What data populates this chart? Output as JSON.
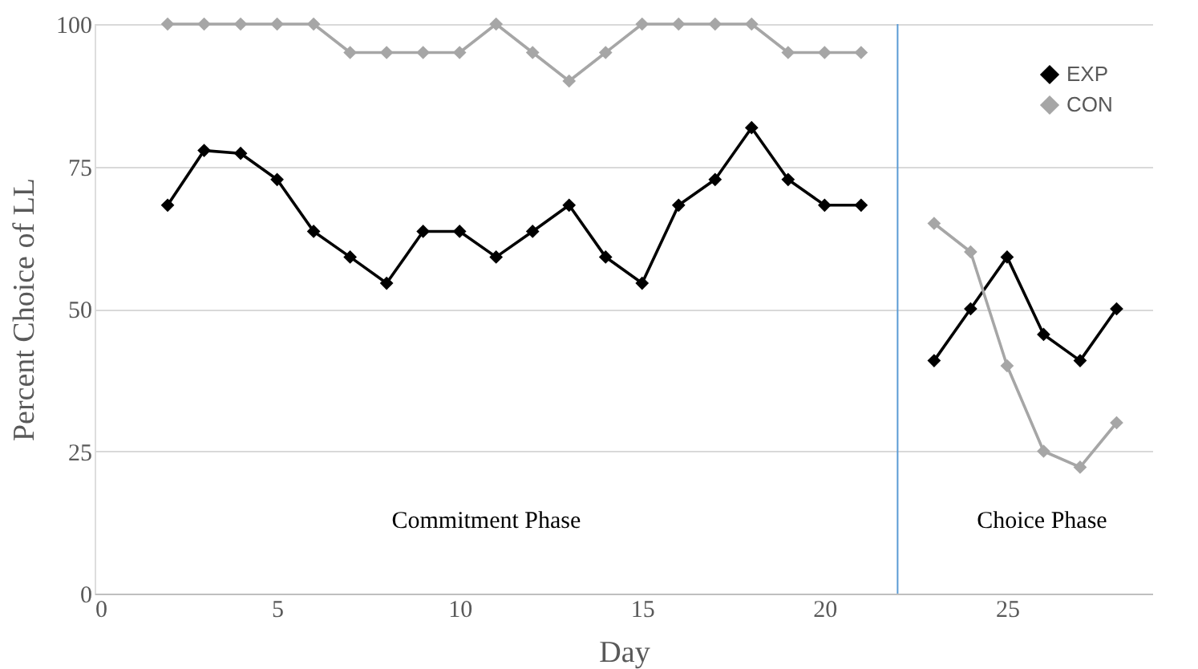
{
  "chart_data": {
    "type": "line",
    "xlabel": "Day",
    "ylabel": "Percent Choice of LL",
    "x": [
      2,
      3,
      4,
      5,
      6,
      7,
      8,
      9,
      10,
      11,
      12,
      13,
      14,
      15,
      16,
      17,
      18,
      19,
      20,
      21,
      null,
      23,
      24,
      25,
      26,
      27,
      28
    ],
    "series": [
      {
        "name": "EXP",
        "color": "#000000",
        "values": [
          68.2,
          77.8,
          77.3,
          72.7,
          63.6,
          59.1,
          54.5,
          63.6,
          63.6,
          59.1,
          63.6,
          68.2,
          59.1,
          54.5,
          68.2,
          72.7,
          81.8,
          72.7,
          68.2,
          68.2,
          null,
          40.9,
          50,
          59.1,
          45.5,
          40.9,
          50
        ]
      },
      {
        "name": "CON",
        "color": "#a6a6a6",
        "values": [
          100,
          100,
          100,
          100,
          100,
          95,
          95,
          95,
          95,
          100,
          95,
          90,
          95,
          100,
          100,
          100,
          100,
          95,
          95,
          95,
          null,
          65,
          60,
          40,
          25,
          22.2,
          30
        ]
      }
    ],
    "xlim": [
      0,
      29
    ],
    "xticks": [
      0,
      5,
      10,
      15,
      20,
      25
    ],
    "ylim": [
      0,
      100
    ],
    "yticks": [
      0,
      25,
      50,
      75,
      100
    ],
    "grid": "y",
    "legend": "top right",
    "marker": "diamond",
    "line_style": "solid",
    "ref_lines": [
      {
        "axis": "x",
        "value": 22,
        "color": "#5b9bd5"
      }
    ],
    "annotations": [
      "Commitment Phase",
      "Choice Phase"
    ]
  }
}
